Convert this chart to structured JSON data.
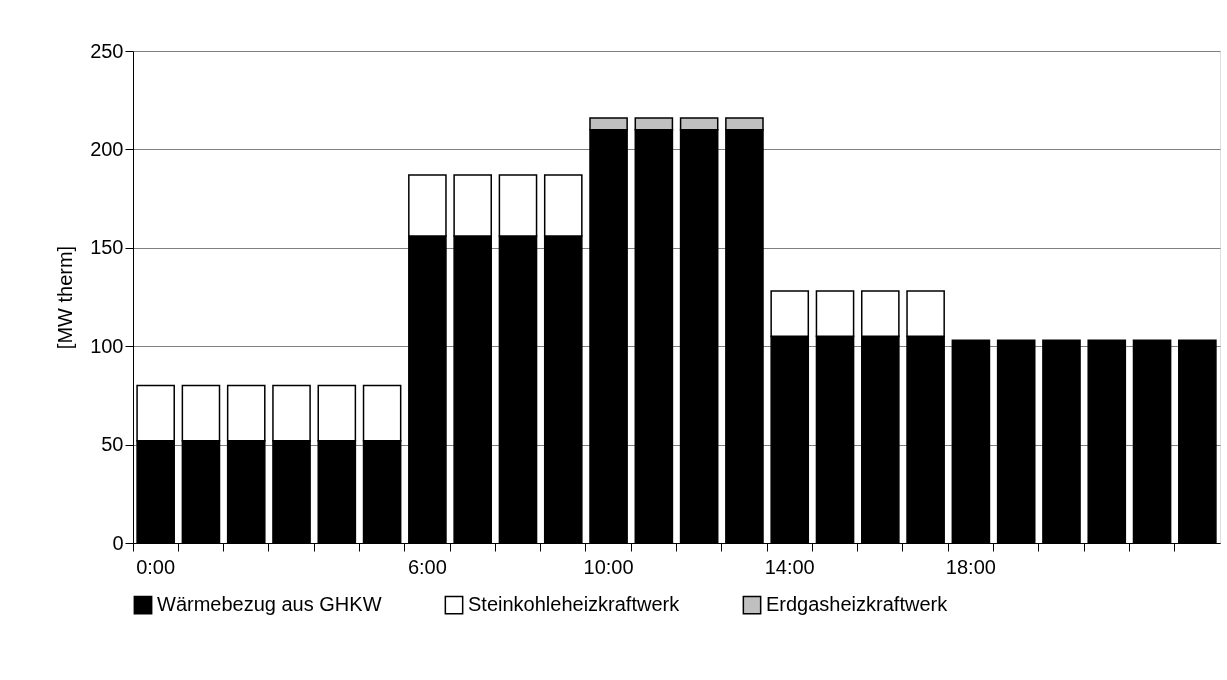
{
  "chart_data": {
    "type": "bar",
    "stacked": true,
    "ylabel": "[MW therm]",
    "categories": [
      "0:00",
      null,
      null,
      null,
      null,
      null,
      "6:00",
      null,
      null,
      null,
      "10:00",
      null,
      null,
      null,
      "14:00",
      null,
      null,
      null,
      "18:00",
      null,
      null,
      null,
      null,
      null
    ],
    "series": [
      {
        "name": "Wärmebezug aus GHKW",
        "color": "#000000",
        "values": [
          52,
          52,
          52,
          52,
          52,
          52,
          156,
          156,
          156,
          156,
          210,
          210,
          210,
          210,
          105,
          105,
          105,
          105,
          103,
          103,
          103,
          103,
          103,
          103
        ]
      },
      {
        "name": "Steinkohleheizkraftwerk",
        "color": "#ffffff",
        "values": [
          28,
          28,
          28,
          28,
          28,
          28,
          31,
          31,
          31,
          31,
          null,
          null,
          null,
          null,
          23,
          23,
          23,
          23,
          null,
          null,
          null,
          null,
          null,
          null
        ]
      },
      {
        "name": "Erdgasheizkraftwerk",
        "color": "#c0c0c0",
        "values": [
          null,
          null,
          null,
          null,
          null,
          null,
          null,
          null,
          null,
          null,
          6,
          6,
          6,
          6,
          null,
          null,
          null,
          null,
          null,
          null,
          null,
          null,
          null,
          null
        ]
      }
    ],
    "ylim": [
      0,
      250
    ],
    "yticks": [
      0,
      50,
      100,
      150,
      200,
      250
    ],
    "grid": "y",
    "legend": "bottom"
  }
}
